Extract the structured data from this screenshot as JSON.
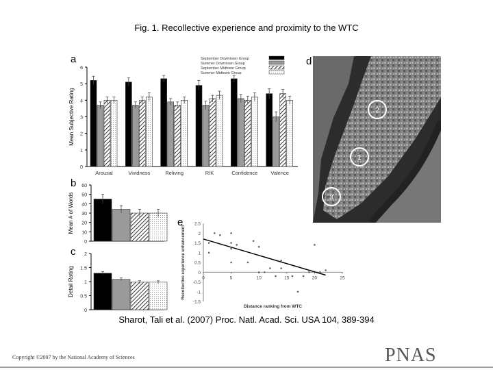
{
  "figure": {
    "title": "Fig. 1. Recollective experience and proximity to the WTC",
    "citation": "Sharot, Tali et al. (2007) Proc. Natl. Acad. Sci. USA 104, 389-394",
    "copyright": "Copyright ©2007 by the National Academy of Sciences",
    "logo": "PNAS",
    "panel_labels": {
      "a": "a",
      "b": "b",
      "c": "c",
      "d": "d",
      "e": "e"
    }
  },
  "chart_data": [
    {
      "panel": "a",
      "type": "bar",
      "ylabel": "Mean Subjective Rating",
      "ylim": [
        0,
        6
      ],
      "yticks": [
        "0",
        "1",
        "2",
        "3",
        "4",
        "5",
        "6"
      ],
      "categories": [
        "Arousal",
        "Vividness",
        "Reliving",
        "R/K",
        "Confidence",
        "Valence"
      ],
      "legend_position": "top-right",
      "series": [
        {
          "name": "September Downtown Group",
          "fill": "solid-black",
          "values": [
            5.2,
            5.1,
            5.3,
            4.9,
            5.3,
            4.4
          ],
          "errors": [
            0.25,
            0.25,
            0.2,
            0.3,
            0.2,
            0.3
          ]
        },
        {
          "name": "Summer Downtown Group",
          "fill": "solid-gray",
          "values": [
            3.7,
            3.7,
            3.9,
            3.7,
            4.1,
            3.0
          ],
          "errors": [
            0.2,
            0.2,
            0.2,
            0.25,
            0.25,
            0.3
          ]
        },
        {
          "name": "September Midtown Group",
          "fill": "hatched",
          "values": [
            4.0,
            4.0,
            3.7,
            4.1,
            4.0,
            4.4
          ],
          "errors": [
            0.2,
            0.2,
            0.2,
            0.2,
            0.25,
            0.25
          ]
        },
        {
          "name": "Summer Midtown Group",
          "fill": "dotted",
          "values": [
            4.0,
            4.2,
            4.0,
            4.3,
            4.2,
            4.0
          ],
          "errors": [
            0.2,
            0.25,
            0.2,
            0.25,
            0.25,
            0.25
          ]
        }
      ]
    },
    {
      "panel": "b",
      "type": "bar",
      "ylabel": "Mean # of Words",
      "ylim": [
        0,
        60
      ],
      "yticks": [
        "0",
        "10",
        "20",
        "30",
        "40",
        "50",
        "60"
      ],
      "values": [
        45,
        34,
        30,
        30
      ],
      "errors": [
        5,
        4,
        4,
        4
      ]
    },
    {
      "panel": "c",
      "type": "bar",
      "ylabel": "Detail Rating",
      "ylim": [
        0,
        2
      ],
      "yticks": [
        "0",
        "0.5",
        "1",
        "1.5",
        "2"
      ],
      "values": [
        1.3,
        1.08,
        0.98,
        0.98
      ],
      "errors": [
        0.05,
        0.05,
        0.05,
        0.05
      ]
    },
    {
      "panel": "e",
      "type": "scatter",
      "xlabel": "Distance ranking from WTC",
      "ylabel": "Recollective experience enhancement",
      "xlim": [
        0,
        25
      ],
      "ylim": [
        -1.5,
        2.5
      ],
      "xticks": [
        "0",
        "5",
        "10",
        "15",
        "20",
        "25"
      ],
      "yticks": [
        "-1.5",
        "-1",
        "-0.5",
        "0",
        "0.5",
        "1",
        "1.5",
        "2",
        "2.5"
      ],
      "points": [
        [
          1,
          1.5
        ],
        [
          1,
          1.0
        ],
        [
          2,
          2.0
        ],
        [
          3,
          1.9
        ],
        [
          5,
          1.5
        ],
        [
          5,
          2.0
        ],
        [
          5,
          1.2
        ],
        [
          5,
          0.5
        ],
        [
          6,
          1.4
        ],
        [
          8,
          0.5
        ],
        [
          9,
          1.6
        ],
        [
          10,
          0.0
        ],
        [
          10,
          1.3
        ],
        [
          11,
          0.0
        ],
        [
          12,
          0.2
        ],
        [
          13,
          -0.2
        ],
        [
          14,
          0.2
        ],
        [
          14,
          0.6
        ],
        [
          16,
          -0.2
        ],
        [
          17,
          -1.0
        ],
        [
          18,
          -0.2
        ],
        [
          19,
          0.0
        ],
        [
          20,
          1.4
        ],
        [
          21,
          0.0
        ],
        [
          22,
          0.1
        ]
      ],
      "trendline": {
        "x": [
          0,
          22
        ],
        "y": [
          1.7,
          -0.15
        ]
      }
    },
    {
      "panel": "d",
      "type": "map",
      "description_markers": [
        "1",
        "2",
        "3"
      ]
    }
  ]
}
